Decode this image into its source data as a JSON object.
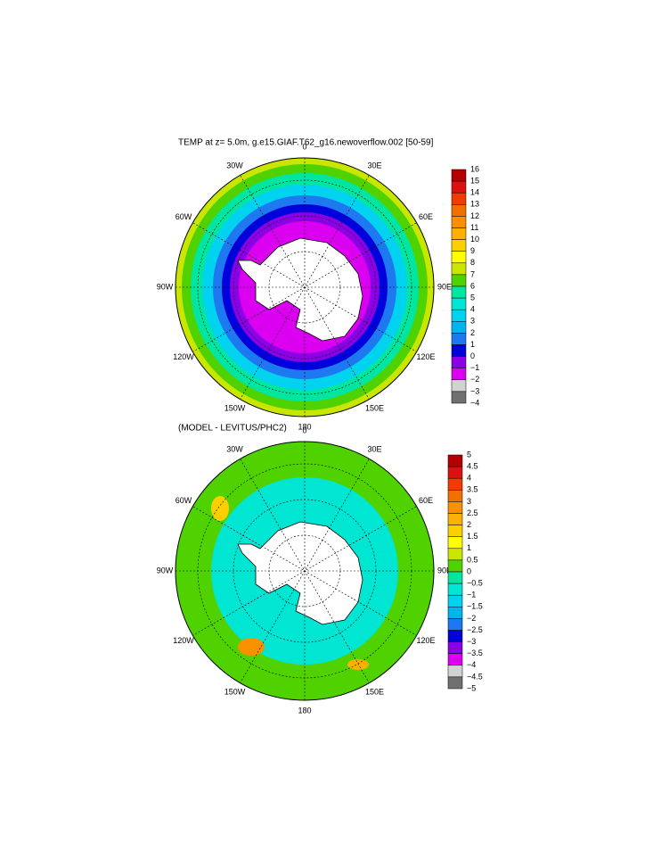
{
  "panels": [
    {
      "title": "TEMP at z=   5.0m, g.e15.GIAF.T62_g16.newoverflow.002 [50-59]",
      "lon_labels": [
        "0",
        "30E",
        "60E",
        "90E",
        "120E",
        "150E",
        "180",
        "150W",
        "120W",
        "90W",
        "60W",
        "30W"
      ],
      "colorbar": {
        "labels": [
          "16",
          "15",
          "14",
          "13",
          "12",
          "11",
          "10",
          "9",
          "8",
          "7",
          "6",
          "5",
          "4",
          "3",
          "2",
          "1",
          "0",
          "−1",
          "−2",
          "−3",
          "−4"
        ],
        "colors": [
          "#b40000",
          "#dd1010",
          "#f03c00",
          "#f07000",
          "#f89000",
          "#fcb000",
          "#fcd000",
          "#ffff00",
          "#c8e600",
          "#50d200",
          "#00e6a0",
          "#00e6d2",
          "#00d2f0",
          "#00b4f0",
          "#1e78f0",
          "#0000dc",
          "#8c00e6",
          "#dc00f0",
          "#d2d2d2",
          "#707070"
        ]
      }
    },
    {
      "title": "(MODEL - LEVITUS/PHC2)",
      "lon_labels": [
        "0",
        "30E",
        "60E",
        "90E",
        "120E",
        "150E",
        "180",
        "150W",
        "120W",
        "90W",
        "60W",
        "30W"
      ],
      "colorbar": {
        "labels": [
          "5",
          "4.5",
          "4",
          "3.5",
          "3",
          "2.5",
          "2",
          "1.5",
          "1",
          "0.5",
          "0",
          "−0.5",
          "−1",
          "−1.5",
          "−2",
          "−2.5",
          "−3",
          "−3.5",
          "−4",
          "−4.5",
          "−5"
        ],
        "colors": [
          "#b40000",
          "#dd1010",
          "#f03c00",
          "#f07000",
          "#f89000",
          "#fcb000",
          "#fcd000",
          "#ffff00",
          "#c8e600",
          "#50d200",
          "#00e6a0",
          "#00e6d2",
          "#00d2f0",
          "#00b4f0",
          "#1e78f0",
          "#0000dc",
          "#8c00e6",
          "#dc00f0",
          "#d2d2d2",
          "#707070"
        ]
      }
    }
  ]
}
